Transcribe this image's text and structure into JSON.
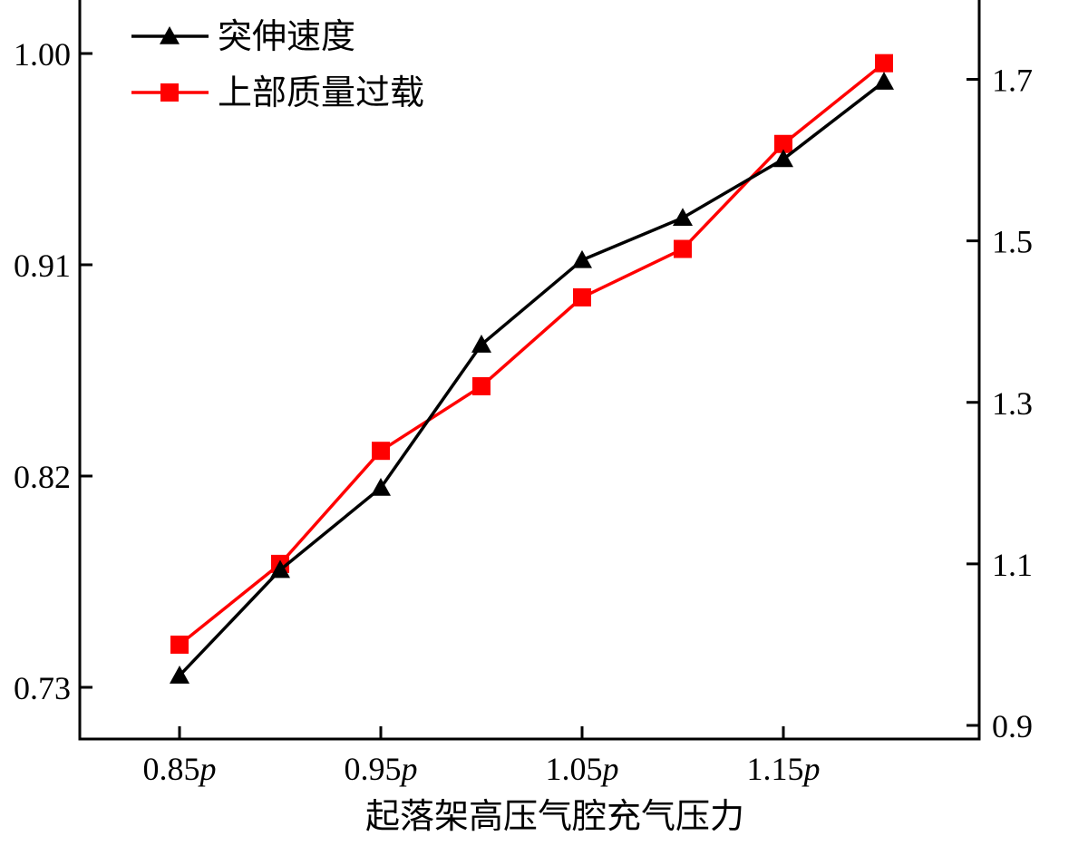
{
  "chart_data": {
    "type": "line",
    "xlabel": "起落架高压气腔充气压力",
    "x": [
      0.85,
      0.9,
      0.95,
      1.0,
      1.05,
      1.1,
      1.15,
      1.2
    ],
    "x_ticks": [
      {
        "value": 0.85,
        "num": "0.85",
        "unit": "p"
      },
      {
        "value": 0.95,
        "num": "0.95",
        "unit": "p"
      },
      {
        "value": 1.05,
        "num": "1.05",
        "unit": "p"
      },
      {
        "value": 1.15,
        "num": "1.15",
        "unit": "p"
      }
    ],
    "xlim": [
      0.8,
      1.25
    ],
    "left_axis": {
      "ylim": [
        0.71,
        1.02
      ],
      "ticks": [
        {
          "value": 0.73,
          "label": "0.73"
        },
        {
          "value": 0.82,
          "label": "0.82"
        },
        {
          "value": 0.91,
          "label": "0.91"
        },
        {
          "value": 1.0,
          "label": "1.00"
        }
      ]
    },
    "right_axis": {
      "ylim": [
        0.9,
        1.8
      ],
      "ticks": [
        {
          "value": 0.9,
          "label": "0.9"
        },
        {
          "value": 1.1,
          "label": "1.1"
        },
        {
          "value": 1.3,
          "label": "1.3"
        },
        {
          "value": 1.5,
          "label": "1.5"
        },
        {
          "value": 1.7,
          "label": "1.7"
        }
      ]
    },
    "series": [
      {
        "name": "突伸速度",
        "axis": "left",
        "color": "#000000",
        "marker": "triangle",
        "values": [
          0.735,
          0.78,
          0.815,
          0.876,
          0.912,
          0.93,
          0.955,
          0.988
        ]
      },
      {
        "name": "上部质量过载",
        "axis": "right",
        "color": "#ff0000",
        "marker": "square",
        "values": [
          1.0,
          1.1,
          1.24,
          1.32,
          1.43,
          1.49,
          1.62,
          1.72
        ]
      }
    ],
    "legend": {
      "position": "top-left",
      "entries": [
        "突伸速度",
        "上部质量过载"
      ]
    },
    "grid": false
  }
}
